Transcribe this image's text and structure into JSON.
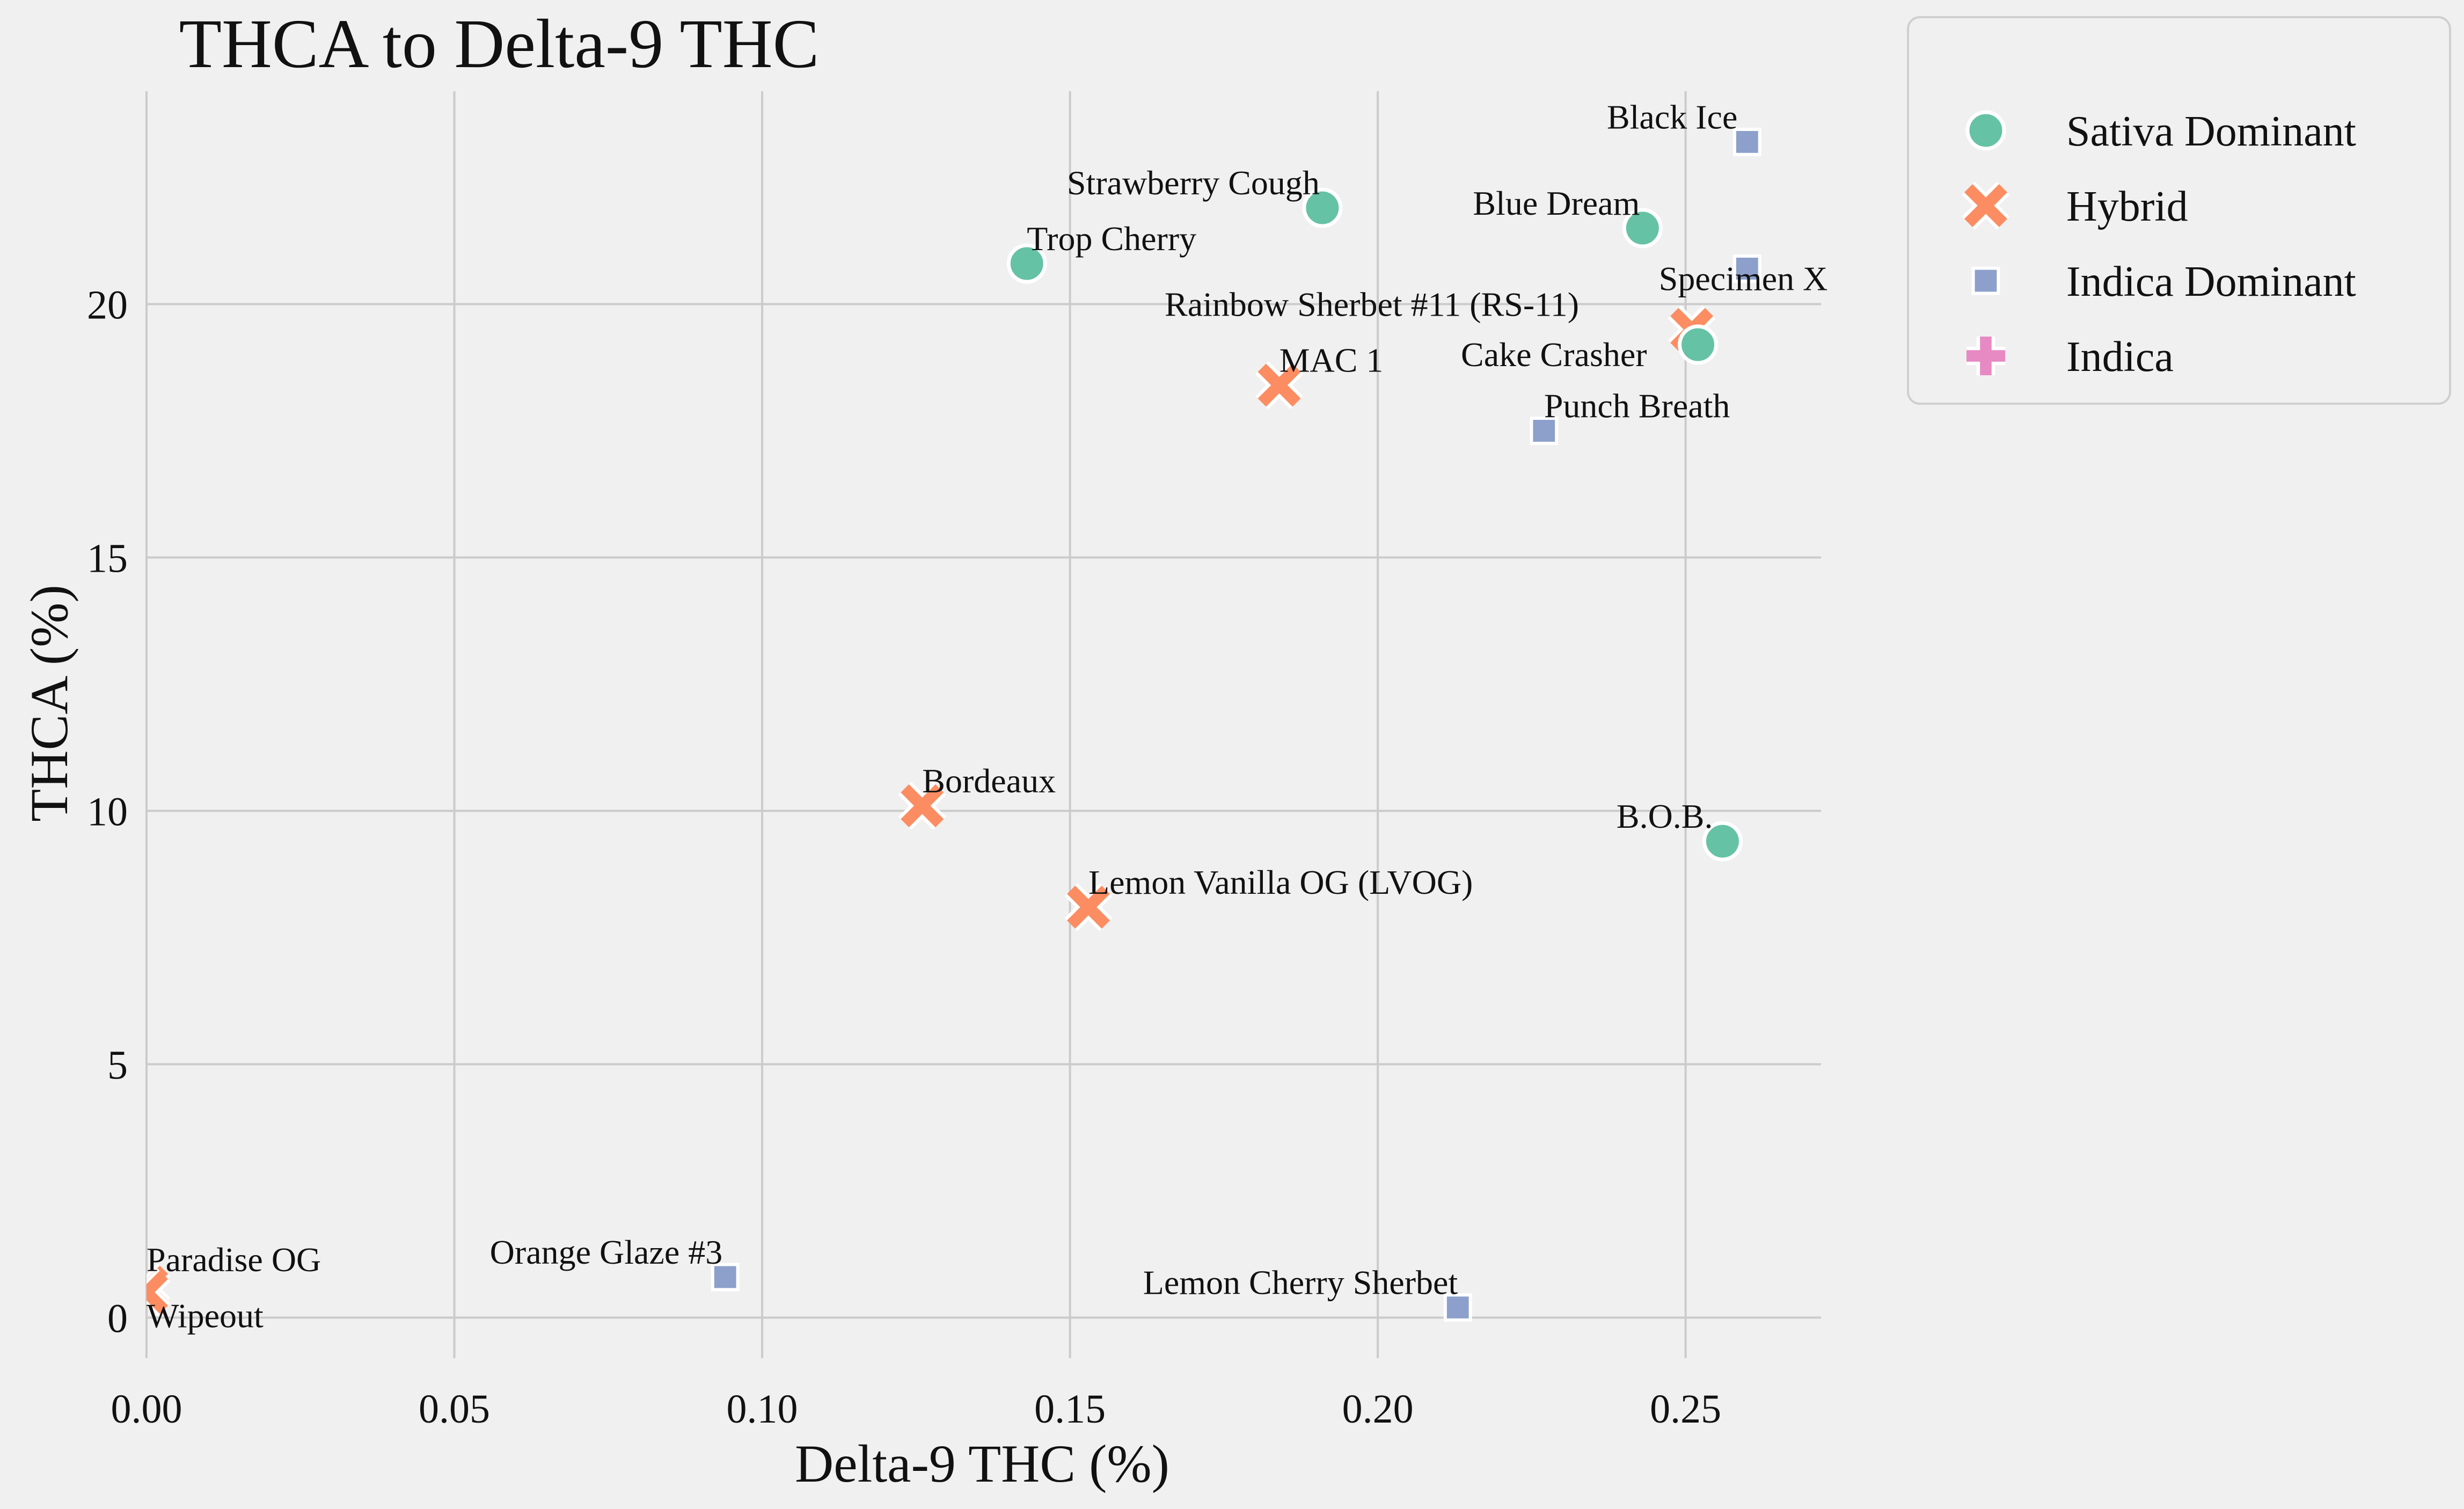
{
  "chart_data": {
    "type": "scatter",
    "title": "THCA to Delta-9 THC",
    "xlabel": "Delta-9 THC (%)",
    "ylabel": "THCA (%)",
    "xlim": [
      0,
      0.272
    ],
    "ylim": [
      -0.8,
      24.2
    ],
    "x_ticks": [
      "0.00",
      "0.05",
      "0.10",
      "0.15",
      "0.20",
      "0.25"
    ],
    "y_ticks": [
      "0",
      "5",
      "10",
      "15",
      "20"
    ],
    "grid": true,
    "legend_position": "outside-upper-right",
    "categories": [
      {
        "name": "Sativa Dominant",
        "marker": "circle",
        "color": "#66c2a5"
      },
      {
        "name": "Hybrid",
        "marker": "x",
        "color": "#fc8d62"
      },
      {
        "name": "Indica Dominant",
        "marker": "square",
        "color": "#8da0cb"
      },
      {
        "name": "Indica",
        "marker": "plus",
        "color": "#e78ac3"
      }
    ],
    "points": [
      {
        "label": "Black Ice",
        "x": 0.26,
        "y": 23.2,
        "category": "Indica Dominant"
      },
      {
        "label": "Strawberry Cough",
        "x": 0.191,
        "y": 21.9,
        "category": "Sativa Dominant"
      },
      {
        "label": "Blue Dream",
        "x": 0.243,
        "y": 21.5,
        "category": "Sativa Dominant"
      },
      {
        "label": "Trop Cherry",
        "x": 0.143,
        "y": 20.8,
        "category": "Sativa Dominant"
      },
      {
        "label": "Specimen X",
        "x": 0.26,
        "y": 20.7,
        "category": "Indica Dominant"
      },
      {
        "label": "Rainbow Sherbet #11 (RS-11)",
        "x": 0.251,
        "y": 19.5,
        "category": "Hybrid"
      },
      {
        "label": "Cake Crasher",
        "x": 0.252,
        "y": 19.2,
        "category": "Sativa Dominant"
      },
      {
        "label": "MAC 1",
        "x": 0.184,
        "y": 18.4,
        "category": "Hybrid"
      },
      {
        "label": "Punch Breath",
        "x": 0.227,
        "y": 17.5,
        "category": "Indica Dominant"
      },
      {
        "label": "Bordeaux",
        "x": 0.126,
        "y": 10.1,
        "category": "Hybrid"
      },
      {
        "label": "B.O.B.",
        "x": 0.256,
        "y": 9.4,
        "category": "Sativa Dominant"
      },
      {
        "label": "Lemon Vanilla OG (LVOG)",
        "x": 0.153,
        "y": 8.1,
        "category": "Hybrid"
      },
      {
        "label": "Paradise OG",
        "x": 0.0,
        "y": 0.6,
        "category": "Hybrid"
      },
      {
        "label": "Wipeout",
        "x": 0.0,
        "y": 0.5,
        "category": "Hybrid"
      },
      {
        "label": "Orange Glaze #3",
        "x": 0.094,
        "y": 0.8,
        "category": "Indica Dominant"
      },
      {
        "label": "Lemon Cherry Sherbet",
        "x": 0.213,
        "y": 0.2,
        "category": "Indica Dominant"
      }
    ]
  }
}
